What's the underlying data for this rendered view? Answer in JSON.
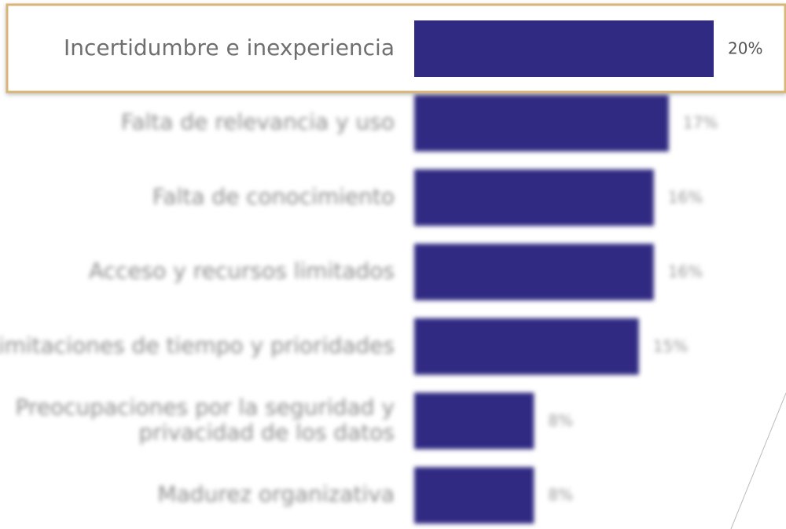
{
  "chart_data": {
    "type": "bar",
    "categories": [
      "Incertidumbre e inexperiencia",
      "Falta de relevancia y uso",
      "Falta de conocimiento",
      "Acceso y recursos limitados",
      "Limitaciones de tiempo y prioridades",
      "Preocupaciones por la seguridad y\nprivacidad de los datos",
      "Madurez organizativa"
    ],
    "values": [
      20,
      17,
      16,
      16,
      15,
      8,
      8
    ],
    "value_labels": [
      "20%",
      "17%",
      "16%",
      "16%",
      "15%",
      "8%",
      "8%"
    ],
    "color": "#302a82"
  }
}
